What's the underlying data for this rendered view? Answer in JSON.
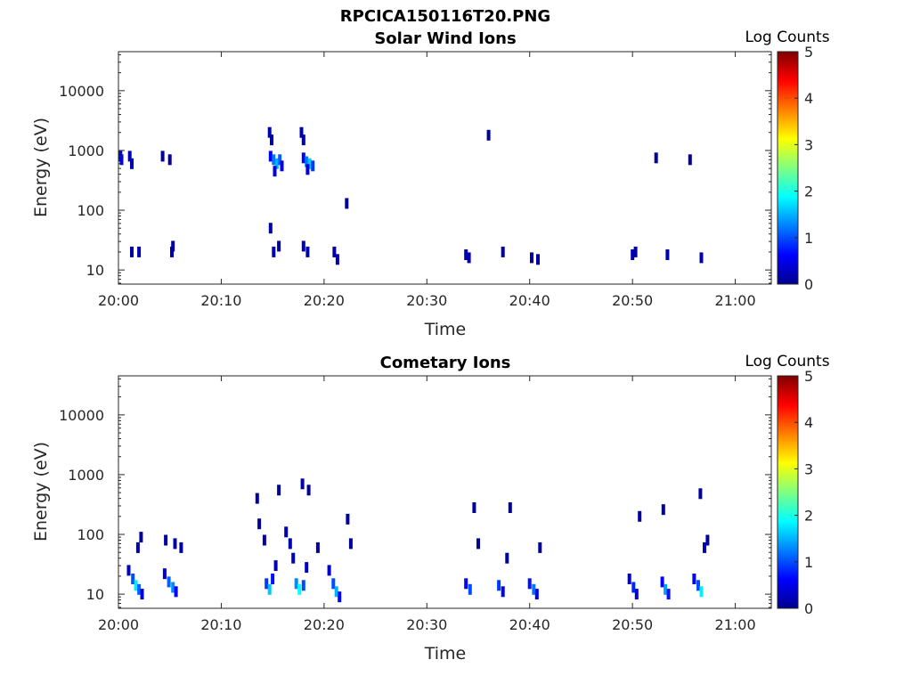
{
  "figure": {
    "title": "RPCICA150116T20.PNG"
  },
  "colorbar": {
    "label": "Log Counts",
    "ticks": [
      "0",
      "1",
      "2",
      "3",
      "4",
      "5"
    ],
    "range": [
      0,
      5
    ],
    "colormap": [
      "#00008f",
      "#0000ff",
      "#0080ff",
      "#00ffff",
      "#80ff80",
      "#ffff00",
      "#ff8000",
      "#ff0000",
      "#800000"
    ]
  },
  "x_axis": {
    "label": "Time",
    "ticks": [
      "20:00",
      "20:10",
      "20:20",
      "20:30",
      "20:40",
      "20:50",
      "21:00"
    ],
    "range_minutes": [
      0,
      63.5
    ]
  },
  "y_axis": {
    "label": "Energy (eV)",
    "ticks": [
      "10",
      "100",
      "1000",
      "10000"
    ],
    "scale": "log",
    "range": [
      5.8,
      45000
    ]
  },
  "chart_data": [
    {
      "type": "heatmap",
      "title": "Solar Wind Ions",
      "x_units": "minutes after 20:00",
      "cells": [
        {
          "t": 0.2,
          "e": 800,
          "c": 0.3
        },
        {
          "t": 0.3,
          "e": 700,
          "c": 0.5
        },
        {
          "t": 1.1,
          "e": 800,
          "c": 0.2
        },
        {
          "t": 1.3,
          "e": 600,
          "c": 0.2
        },
        {
          "t": 4.3,
          "e": 800,
          "c": 0.1
        },
        {
          "t": 5.0,
          "e": 700,
          "c": 0.1
        },
        {
          "t": 1.3,
          "e": 20,
          "c": 0.1
        },
        {
          "t": 2.0,
          "e": 20,
          "c": 0.2
        },
        {
          "t": 5.2,
          "e": 20,
          "c": 0.2
        },
        {
          "t": 5.3,
          "e": 25,
          "c": 0.1
        },
        {
          "t": 14.7,
          "e": 2000,
          "c": 0.3
        },
        {
          "t": 14.9,
          "e": 1500,
          "c": 0.2
        },
        {
          "t": 14.8,
          "e": 800,
          "c": 0.6
        },
        {
          "t": 15.1,
          "e": 700,
          "c": 1.2
        },
        {
          "t": 15.4,
          "e": 600,
          "c": 1.5
        },
        {
          "t": 15.7,
          "e": 700,
          "c": 1.1
        },
        {
          "t": 15.9,
          "e": 550,
          "c": 0.5
        },
        {
          "t": 15.2,
          "e": 450,
          "c": 0.4
        },
        {
          "t": 14.8,
          "e": 50,
          "c": 0.1
        },
        {
          "t": 15.1,
          "e": 20,
          "c": 0.2
        },
        {
          "t": 15.6,
          "e": 25,
          "c": 0.1
        },
        {
          "t": 17.8,
          "e": 2000,
          "c": 0.2
        },
        {
          "t": 18.0,
          "e": 1500,
          "c": 0.2
        },
        {
          "t": 18.0,
          "e": 750,
          "c": 0.6
        },
        {
          "t": 18.3,
          "e": 650,
          "c": 1.2
        },
        {
          "t": 18.6,
          "e": 600,
          "c": 1.6
        },
        {
          "t": 18.9,
          "e": 550,
          "c": 0.9
        },
        {
          "t": 18.4,
          "e": 480,
          "c": 0.4
        },
        {
          "t": 18.0,
          "e": 25,
          "c": 0.2
        },
        {
          "t": 18.4,
          "e": 20,
          "c": 0.1
        },
        {
          "t": 21.0,
          "e": 20,
          "c": 0.1
        },
        {
          "t": 21.3,
          "e": 15,
          "c": 0.2
        },
        {
          "t": 22.2,
          "e": 130,
          "c": 0.1
        },
        {
          "t": 33.8,
          "e": 18,
          "c": 0.2
        },
        {
          "t": 34.1,
          "e": 16,
          "c": 0.2
        },
        {
          "t": 36.0,
          "e": 1800,
          "c": 0.1
        },
        {
          "t": 37.4,
          "e": 20,
          "c": 0.1
        },
        {
          "t": 40.2,
          "e": 16,
          "c": 0.1
        },
        {
          "t": 40.8,
          "e": 15,
          "c": 0.1
        },
        {
          "t": 50.0,
          "e": 18,
          "c": 0.2
        },
        {
          "t": 50.3,
          "e": 20,
          "c": 0.1
        },
        {
          "t": 52.3,
          "e": 750,
          "c": 0.1
        },
        {
          "t": 53.4,
          "e": 18,
          "c": 0.2
        },
        {
          "t": 55.6,
          "e": 700,
          "c": 0.1
        },
        {
          "t": 56.7,
          "e": 16,
          "c": 0.1
        }
      ]
    },
    {
      "type": "heatmap",
      "title": "Cometary Ions",
      "x_units": "minutes after 20:00",
      "cells": [
        {
          "t": 1.0,
          "e": 25,
          "c": 0.3
        },
        {
          "t": 1.4,
          "e": 18,
          "c": 1.0
        },
        {
          "t": 1.7,
          "e": 14,
          "c": 1.8
        },
        {
          "t": 2.0,
          "e": 12,
          "c": 1.1
        },
        {
          "t": 2.3,
          "e": 10,
          "c": 0.4
        },
        {
          "t": 1.9,
          "e": 60,
          "c": 0.2
        },
        {
          "t": 2.2,
          "e": 90,
          "c": 0.1
        },
        {
          "t": 4.5,
          "e": 22,
          "c": 0.4
        },
        {
          "t": 4.9,
          "e": 16,
          "c": 1.1
        },
        {
          "t": 5.3,
          "e": 13,
          "c": 1.3
        },
        {
          "t": 5.6,
          "e": 11,
          "c": 0.6
        },
        {
          "t": 5.5,
          "e": 70,
          "c": 0.1
        },
        {
          "t": 6.1,
          "e": 60,
          "c": 0.1
        },
        {
          "t": 4.6,
          "e": 80,
          "c": 0.1
        },
        {
          "t": 13.5,
          "e": 400,
          "c": 0.1
        },
        {
          "t": 13.7,
          "e": 150,
          "c": 0.1
        },
        {
          "t": 14.2,
          "e": 80,
          "c": 0.2
        },
        {
          "t": 14.4,
          "e": 15,
          "c": 0.9
        },
        {
          "t": 14.7,
          "e": 12,
          "c": 1.6
        },
        {
          "t": 15.0,
          "e": 18,
          "c": 0.7
        },
        {
          "t": 15.3,
          "e": 30,
          "c": 0.2
        },
        {
          "t": 15.6,
          "e": 550,
          "c": 0.1
        },
        {
          "t": 16.3,
          "e": 110,
          "c": 0.2
        },
        {
          "t": 16.7,
          "e": 70,
          "c": 0.2
        },
        {
          "t": 17.0,
          "e": 40,
          "c": 0.3
        },
        {
          "t": 17.3,
          "e": 15,
          "c": 1.3
        },
        {
          "t": 17.6,
          "e": 12,
          "c": 1.9
        },
        {
          "t": 18.0,
          "e": 14,
          "c": 1.0
        },
        {
          "t": 18.3,
          "e": 28,
          "c": 0.3
        },
        {
          "t": 17.9,
          "e": 700,
          "c": 0.1
        },
        {
          "t": 18.5,
          "e": 550,
          "c": 0.1
        },
        {
          "t": 19.4,
          "e": 60,
          "c": 0.1
        },
        {
          "t": 20.5,
          "e": 25,
          "c": 0.3
        },
        {
          "t": 20.9,
          "e": 15,
          "c": 1.0
        },
        {
          "t": 21.2,
          "e": 11,
          "c": 1.5
        },
        {
          "t": 21.5,
          "e": 9,
          "c": 0.6
        },
        {
          "t": 22.3,
          "e": 180,
          "c": 0.1
        },
        {
          "t": 22.6,
          "e": 70,
          "c": 0.1
        },
        {
          "t": 33.8,
          "e": 15,
          "c": 0.6
        },
        {
          "t": 34.2,
          "e": 12,
          "c": 1.0
        },
        {
          "t": 34.6,
          "e": 280,
          "c": 0.1
        },
        {
          "t": 35.0,
          "e": 70,
          "c": 0.1
        },
        {
          "t": 37.0,
          "e": 14,
          "c": 0.9
        },
        {
          "t": 37.4,
          "e": 11,
          "c": 0.5
        },
        {
          "t": 37.8,
          "e": 40,
          "c": 0.1
        },
        {
          "t": 38.1,
          "e": 280,
          "c": 0.1
        },
        {
          "t": 40.0,
          "e": 15,
          "c": 0.7
        },
        {
          "t": 40.4,
          "e": 12,
          "c": 1.2
        },
        {
          "t": 40.7,
          "e": 10,
          "c": 0.5
        },
        {
          "t": 41.0,
          "e": 60,
          "c": 0.1
        },
        {
          "t": 49.7,
          "e": 18,
          "c": 0.4
        },
        {
          "t": 50.1,
          "e": 13,
          "c": 0.8
        },
        {
          "t": 50.4,
          "e": 10,
          "c": 0.4
        },
        {
          "t": 50.7,
          "e": 200,
          "c": 0.1
        },
        {
          "t": 52.9,
          "e": 16,
          "c": 0.6
        },
        {
          "t": 53.2,
          "e": 12,
          "c": 1.4
        },
        {
          "t": 53.5,
          "e": 10,
          "c": 0.7
        },
        {
          "t": 53.0,
          "e": 260,
          "c": 0.1
        },
        {
          "t": 56.0,
          "e": 18,
          "c": 0.5
        },
        {
          "t": 56.4,
          "e": 14,
          "c": 1.0
        },
        {
          "t": 56.7,
          "e": 11,
          "c": 1.8
        },
        {
          "t": 57.0,
          "e": 60,
          "c": 0.2
        },
        {
          "t": 56.6,
          "e": 480,
          "c": 0.1
        },
        {
          "t": 57.3,
          "e": 80,
          "c": 0.1
        }
      ]
    }
  ]
}
